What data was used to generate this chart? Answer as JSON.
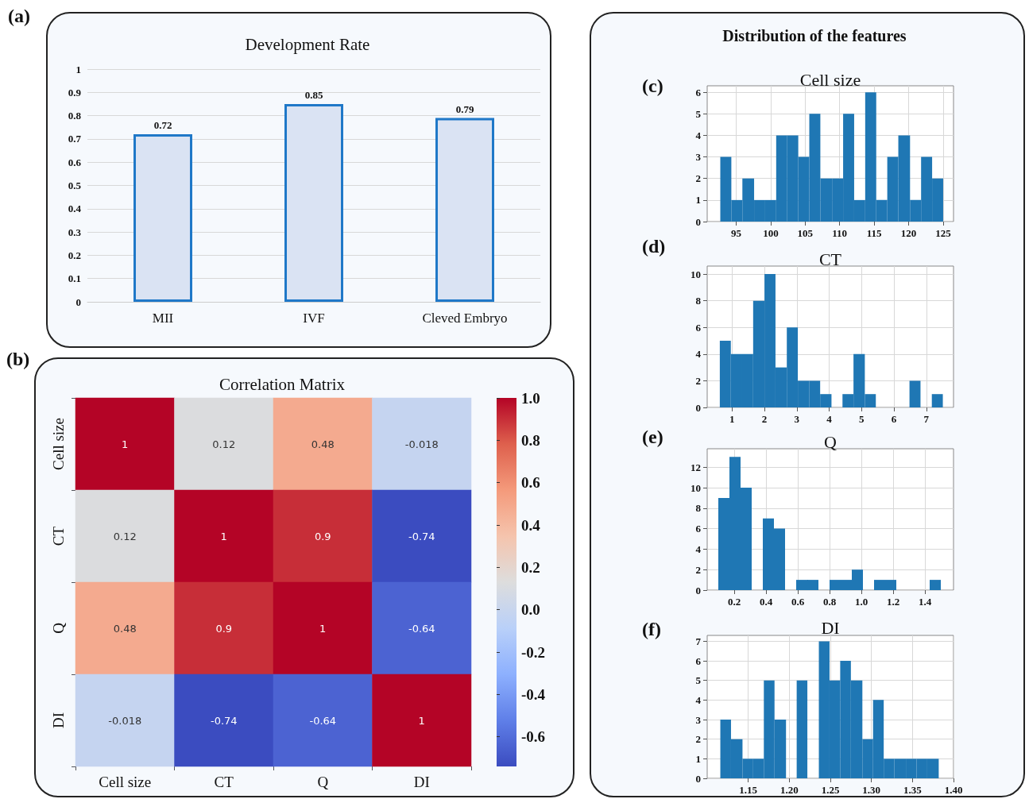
{
  "chart_data": [
    {
      "type": "bar",
      "title": "Development Rate",
      "categories": [
        "MII",
        "IVF",
        "Cleved Embryo"
      ],
      "values": [
        0.72,
        0.85,
        0.79
      ],
      "color": "#dae3f3",
      "ylim": [
        0,
        1
      ],
      "yticks": [
        0,
        0.1,
        0.2,
        0.3,
        0.4,
        0.5,
        0.6,
        0.7,
        0.8,
        0.9,
        1
      ],
      "grid": "y",
      "data_labels": true,
      "annotations": [
        "(a)"
      ]
    },
    {
      "type": "heatmap",
      "title": "Correlation Matrix",
      "categories": [
        "Cell size",
        "CT",
        "Q",
        "DI"
      ],
      "y_categories": [
        "Cell size",
        "CT",
        "Q",
        "DI"
      ],
      "cells": [
        [
          1,
          0.12,
          0.48,
          -0.018
        ],
        [
          0.12,
          1,
          0.9,
          -0.74
        ],
        [
          0.48,
          0.9,
          1,
          -0.64
        ],
        [
          -0.018,
          -0.74,
          -0.64,
          1
        ]
      ],
      "clim": [
        -0.74,
        1
      ],
      "cticks": [
        {
          "value": 1,
          "label": "1.0"
        },
        0.8,
        0.6,
        0.4,
        0.2,
        {
          "value": 0,
          "label": "0.0"
        },
        -0.2,
        -0.4,
        -0.6
      ],
      "data_labels": true,
      "annotations": [
        "(b)"
      ]
    },
    {
      "type": "histogram",
      "title": "Cell size",
      "bins": [
        92.7,
        94.3,
        95.9,
        97.6,
        99.2,
        100.8,
        102.4,
        104.0,
        105.6,
        107.2,
        108.9,
        110.5,
        112.1,
        113.7,
        115.3,
        116.9,
        118.5,
        120.2,
        121.8,
        123.4,
        125.0
      ],
      "values": [
        3,
        1,
        2,
        1,
        1,
        4,
        4,
        3,
        5,
        2,
        2,
        5,
        1,
        6,
        1,
        3,
        4,
        1,
        3,
        2
      ],
      "color": "#1f77b4",
      "xlim": [
        90.8,
        126.5
      ],
      "xticks": [
        95,
        100,
        105,
        110,
        115,
        120,
        125
      ],
      "ylim": [
        0,
        6.3
      ],
      "yticks": [
        0,
        1,
        2,
        3,
        4,
        5,
        6
      ],
      "grid": true,
      "annotations": [
        "(c)",
        "Distribution of the features"
      ]
    },
    {
      "type": "histogram",
      "title": "CT",
      "bins": [
        0.62,
        0.96,
        1.31,
        1.65,
        2.0,
        2.34,
        2.69,
        3.03,
        3.38,
        3.72,
        4.07,
        4.41,
        4.75,
        5.1,
        5.44,
        5.79,
        6.13,
        6.48,
        6.82,
        7.17,
        7.51
      ],
      "values": [
        5,
        4,
        4,
        8,
        10,
        3,
        6,
        2,
        2,
        1,
        0,
        1,
        4,
        1,
        0,
        0,
        0,
        2,
        0,
        1
      ],
      "color": "#1f77b4",
      "xlim": [
        0.23,
        7.84
      ],
      "xticks": [
        1,
        2,
        3,
        4,
        5,
        6,
        7
      ],
      "ylim": [
        0,
        10.6
      ],
      "yticks": [
        0,
        2,
        4,
        6,
        8,
        10
      ],
      "grid": true,
      "annotations": [
        "(d)"
      ]
    },
    {
      "type": "histogram",
      "title": "Q",
      "bins": [
        0.1,
        0.17,
        0.24,
        0.31,
        0.38,
        0.45,
        0.52,
        0.59,
        0.66,
        0.73,
        0.8,
        0.87,
        0.94,
        1.01,
        1.08,
        1.15,
        1.22,
        1.29,
        1.36,
        1.43,
        1.5
      ],
      "values": [
        9,
        13,
        10,
        0,
        7,
        6,
        0,
        1,
        1,
        0,
        1,
        1,
        2,
        0,
        1,
        1,
        0,
        0,
        0,
        1
      ],
      "color": "#1f77b4",
      "xlim": [
        0.03,
        1.58
      ],
      "xticks": [
        0.2,
        0.4,
        0.6,
        0.8,
        {
          "value": 1,
          "label": "1.0"
        },
        1.2,
        1.4
      ],
      "ylim": [
        0,
        13.8
      ],
      "yticks": [
        0,
        2,
        4,
        6,
        8,
        10,
        12
      ],
      "grid": true,
      "annotations": [
        "(e)"
      ]
    },
    {
      "type": "histogram",
      "title": "DI",
      "bins": [
        1.116,
        1.129,
        1.143,
        1.156,
        1.169,
        1.182,
        1.196,
        1.209,
        1.222,
        1.236,
        1.249,
        1.262,
        1.275,
        1.289,
        1.302,
        1.315,
        1.328,
        1.342,
        1.355,
        1.368,
        1.382
      ],
      "values": [
        3,
        2,
        1,
        1,
        5,
        3,
        0,
        5,
        0,
        7,
        5,
        6,
        5,
        2,
        4,
        1,
        1,
        1,
        1,
        1
      ],
      "color": "#1f77b4",
      "xlim": [
        1.1,
        1.4
      ],
      "xticks": [
        1.15,
        {
          "value": 1.2,
          "label": "1.20"
        },
        1.25,
        {
          "value": 1.3,
          "label": "1.30"
        },
        1.35,
        {
          "value": 1.4,
          "label": "1.40"
        }
      ],
      "ylim": [
        0,
        7.3
      ],
      "yticks": [
        0,
        1,
        2,
        3,
        4,
        5,
        6,
        7
      ],
      "grid": true,
      "annotations": [
        "(f)"
      ]
    }
  ]
}
